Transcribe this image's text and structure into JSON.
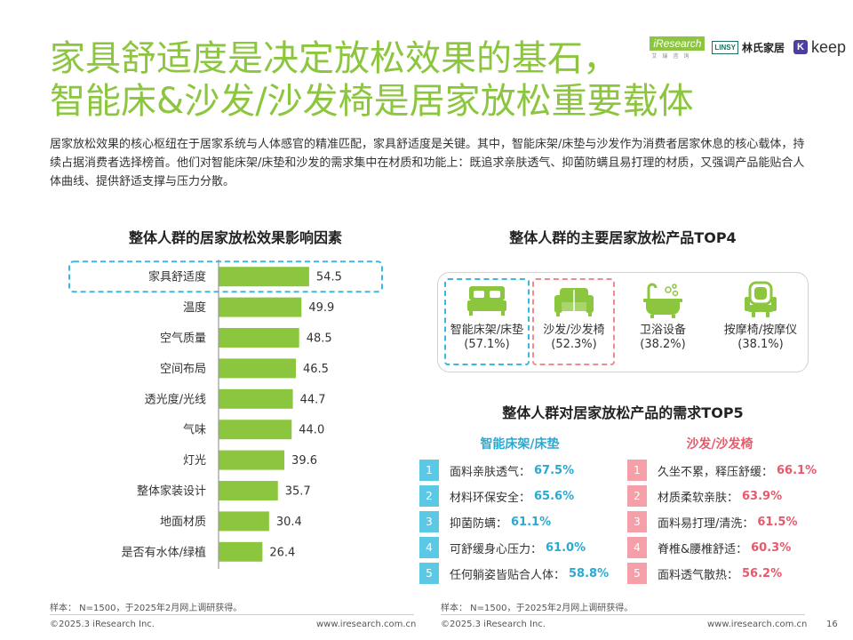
{
  "header": {
    "title_line1": "家具舒适度是决定放松效果的基石，",
    "title_line2": "智能床&沙发/沙发椅是居家放松重要载体",
    "logos": {
      "iresearch": "iResearch",
      "iresearch_sub": "艾瑞咨询",
      "linsy_box": "LINSY",
      "linsy_name": "林氏家居",
      "keep_mark": "K",
      "keep_word": "keep"
    }
  },
  "intro": "居家放松效果的核心枢纽在于居家系统与人体感官的精准匹配，家具舒适度是关键。其中，智能床架/床垫与沙发作为消费者居家休息的核心载体，持续占据消费者选择榜首。他们对智能床架/床垫和沙发的需求集中在材质和功能上：既追求亲肤透气、抑菌防螨且易打理的材质，又强调产品能贴合人体曲线、提供舒适支撑与压力分散。",
  "colors": {
    "title_green": "#8cc63f",
    "bar_green": "#8cc63f",
    "highlight_blue": "#3bb8e0",
    "highlight_pink": "#ef8a93",
    "list_blue": "#5bc8e6",
    "list_pink": "#f5a0a8"
  },
  "left_section": {
    "title": "整体人群的居家放松效果影响因素"
  },
  "chart_data": {
    "type": "bar",
    "orientation": "horizontal",
    "title": "整体人群的居家放松效果影响因素",
    "categories": [
      "家具舒适度",
      "温度",
      "空气质量",
      "空间布局",
      "透光度/光线",
      "气味",
      "灯光",
      "整体家装设计",
      "地面材质",
      "是否有水体/绿植"
    ],
    "values": [
      54.5,
      49.9,
      48.5,
      46.5,
      44.7,
      44.0,
      39.6,
      35.7,
      30.4,
      26.4
    ],
    "value_labels": [
      "54.5",
      "49.9",
      "48.5",
      "46.5",
      "44.7",
      "44.0",
      "39.6",
      "35.7",
      "30.4",
      "26.4"
    ],
    "unit": "%",
    "highlighted_category": "家具舒适度",
    "grid": false
  },
  "top4": {
    "title": "整体人群的主要居家放松产品TOP4",
    "items": [
      {
        "name": "智能床架/床垫",
        "pct": "(57.1%)",
        "icon": "bed-icon",
        "highlight": "blue"
      },
      {
        "name": "沙发/沙发椅",
        "pct": "(52.3%)",
        "icon": "sofa-icon",
        "highlight": "pink"
      },
      {
        "name": "卫浴设备",
        "pct": "(38.2%)",
        "icon": "bathtub-icon",
        "highlight": ""
      },
      {
        "name": "按摩椅/按摩仪",
        "pct": "(38.1%)",
        "icon": "massage-chair-icon",
        "highlight": ""
      }
    ]
  },
  "top5": {
    "title": "整体人群对居家放松产品的需求TOP5",
    "left": {
      "heading": "智能床架/床垫",
      "items": [
        {
          "rank": "1",
          "label": "面料亲肤透气：",
          "value": "67.5%"
        },
        {
          "rank": "2",
          "label": "材料环保安全：",
          "value": "65.6%"
        },
        {
          "rank": "3",
          "label": "抑菌防螨：",
          "value": "61.1%"
        },
        {
          "rank": "4",
          "label": "可舒缓身心压力：",
          "value": "61.0%"
        },
        {
          "rank": "5",
          "label": "任何躺姿皆贴合人体：",
          "value": "58.8%"
        }
      ]
    },
    "right": {
      "heading": "沙发/沙发椅",
      "items": [
        {
          "rank": "1",
          "label": "久坐不累，释压舒缓：",
          "value": "66.1%"
        },
        {
          "rank": "2",
          "label": "材质柔软亲肤：",
          "value": "63.9%"
        },
        {
          "rank": "3",
          "label": "面料易打理/清洗：",
          "value": "61.5%"
        },
        {
          "rank": "4",
          "label": "脊椎&腰椎舒适：",
          "value": "60.3%"
        },
        {
          "rank": "5",
          "label": "面料透气散热：",
          "value": "56.2%"
        }
      ]
    }
  },
  "footer": {
    "note_left": "样本：  N=1500，于2025年2月网上调研获得。",
    "note_right": "样本：  N=1500，于2025年2月网上调研获得。",
    "copyright_left": "©2025.3 iResearch Inc.",
    "url_left": "www.iresearch.com.cn",
    "copyright_right": "©2025.3 iResearch Inc.",
    "url_right": "www.iresearch.com.cn",
    "page": "16"
  }
}
